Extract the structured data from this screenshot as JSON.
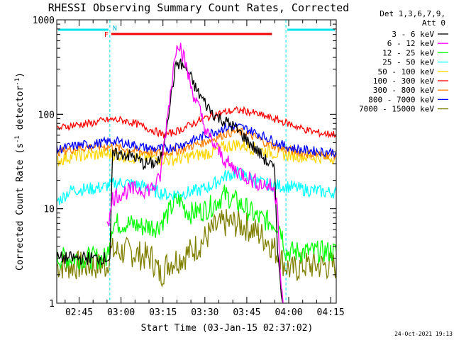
{
  "chart_data": {
    "type": "line",
    "title": "RHESSI Observing Summary Count Rates, Corrected",
    "xlabel": "Start Time (03-Jan-15 02:37:02)",
    "ylabel_main": "Corrected Count Rate (s",
    "ylabel_sup1": "-1",
    "ylabel_mid": " detector",
    "ylabel_sup2": "-1",
    "ylabel_end": ")",
    "yscale": "log",
    "ylim": [
      1,
      1000
    ],
    "xlim_minutes": [
      0,
      100
    ],
    "x_tick_labels": [
      "02:45",
      "03:00",
      "03:15",
      "03:30",
      "03:45",
      "04:00",
      "04:15"
    ],
    "x_tick_minutes": [
      8,
      23,
      38,
      53,
      68,
      83,
      98
    ],
    "y_tick_labels": [
      "1",
      "10",
      "100",
      "1000"
    ],
    "y_tick_values": [
      1,
      10,
      100,
      1000
    ],
    "legend_header": [
      "Det 1,3,6,7,9,",
      "Att 0"
    ],
    "legend_placement": "right",
    "footer_date": "24-Oct-2021 19:13",
    "night_intervals_minutes": [
      [
        0,
        19
      ],
      [
        82,
        100
      ]
    ],
    "night_flag": "N",
    "flare_interval_minutes": [
      19.5,
      77
    ],
    "flare_flag": "F",
    "series": [
      {
        "name": "3 - 6 keV",
        "color": "#000000",
        "t": [
          0,
          19,
          20,
          24,
          28,
          31,
          34,
          37,
          38,
          39,
          41,
          42,
          43,
          45,
          47,
          50,
          54,
          57,
          60,
          63,
          66,
          69,
          72,
          75,
          77,
          78,
          79,
          80,
          81
        ],
        "v": [
          3,
          3,
          37,
          38,
          35,
          30,
          30,
          32,
          40,
          70,
          160,
          260,
          350,
          330,
          280,
          180,
          120,
          95,
          85,
          75,
          62,
          50,
          40,
          32,
          28,
          24,
          4,
          1.5,
          1
        ]
      },
      {
        "name": "6 - 12 keV",
        "color": "#ff00ff",
        "t": [
          18,
          19,
          20,
          24,
          28,
          32,
          35,
          36,
          37,
          38,
          40,
          42,
          43,
          44,
          46,
          48,
          51,
          54,
          58,
          62,
          66,
          70,
          74,
          77,
          79,
          80,
          81
        ],
        "v": [
          8,
          8,
          13,
          15,
          16,
          16,
          17,
          19,
          22,
          38,
          120,
          350,
          620,
          550,
          350,
          200,
          110,
          60,
          40,
          28,
          24,
          20,
          18,
          17,
          12,
          2,
          1
        ]
      },
      {
        "name": "12 - 25 keV",
        "color": "#00ff00",
        "t": [
          0,
          18,
          19,
          20,
          25,
          30,
          36,
          40,
          42,
          44,
          46,
          48,
          52,
          56,
          58,
          60,
          64,
          68,
          72,
          75,
          78,
          80,
          82,
          100
        ],
        "v": [
          3,
          3,
          5,
          7,
          7,
          6.5,
          6.5,
          9,
          11.5,
          12.5,
          10,
          9,
          9.5,
          11,
          12.5,
          14,
          12,
          10,
          8,
          7.5,
          7,
          6.5,
          3.5,
          3.5
        ]
      },
      {
        "name": "25 - 50 keV",
        "color": "#00ffff",
        "t": [
          0,
          2,
          4,
          6,
          10,
          14,
          17,
          20,
          24,
          28,
          32,
          36,
          40,
          44,
          48,
          52,
          56,
          60,
          64,
          68,
          72,
          76,
          80,
          84,
          88,
          92,
          96,
          100
        ],
        "v": [
          12,
          13,
          15,
          16,
          16,
          16.5,
          17,
          18.5,
          19,
          18,
          17,
          15,
          14,
          14.5,
          15,
          16,
          18,
          22,
          24,
          22,
          19,
          18,
          17.5,
          17,
          16,
          15.5,
          15,
          15
        ]
      },
      {
        "name": "50 - 100 keV",
        "color": "#ffd700",
        "t": [
          0,
          4,
          8,
          12,
          16,
          20,
          24,
          28,
          32,
          36,
          40,
          44,
          48,
          52,
          56,
          60,
          64,
          68,
          72,
          76,
          80,
          84,
          88,
          92,
          96,
          100
        ],
        "v": [
          32,
          35,
          37,
          37,
          38,
          38,
          36,
          35,
          35,
          34,
          33,
          34,
          36,
          38,
          40,
          45,
          48,
          46,
          42,
          40,
          38,
          37,
          36,
          35,
          35,
          35
        ]
      },
      {
        "name": "100 - 300 keV",
        "color": "#ff0000",
        "t": [
          0,
          4,
          8,
          12,
          16,
          20,
          24,
          28,
          32,
          36,
          38,
          40,
          44,
          48,
          52,
          56,
          60,
          64,
          68,
          72,
          76,
          80,
          84,
          88,
          92,
          96,
          100
        ],
        "v": [
          70,
          75,
          78,
          80,
          85,
          88,
          86,
          80,
          72,
          65,
          60,
          62,
          68,
          78,
          88,
          98,
          105,
          110,
          108,
          100,
          92,
          85,
          78,
          70,
          65,
          62,
          62
        ]
      },
      {
        "name": "300 - 800 keV",
        "color": "#ff8000",
        "t": [
          0,
          4,
          8,
          12,
          16,
          20,
          24,
          28,
          32,
          36,
          40,
          44,
          48,
          52,
          56,
          60,
          64,
          68,
          72,
          76,
          80,
          84,
          88,
          92,
          96,
          100
        ],
        "v": [
          40,
          42,
          44,
          45,
          46,
          45,
          43,
          41,
          40,
          39,
          40,
          42,
          46,
          50,
          55,
          62,
          66,
          62,
          55,
          48,
          44,
          41,
          39,
          38,
          37,
          37
        ]
      },
      {
        "name": "800 - 7000 keV",
        "color": "#0000ff",
        "t": [
          0,
          4,
          8,
          12,
          16,
          20,
          24,
          28,
          32,
          36,
          40,
          44,
          48,
          52,
          56,
          60,
          64,
          68,
          72,
          76,
          80,
          84,
          88,
          92,
          96,
          100
        ],
        "v": [
          42,
          45,
          47,
          48,
          50,
          52,
          50,
          47,
          44,
          43,
          44,
          47,
          52,
          58,
          65,
          72,
          75,
          70,
          62,
          55,
          48,
          44,
          42,
          41,
          40,
          40
        ]
      },
      {
        "name": "7000 - 15000 keV",
        "color": "#808000",
        "t": [
          0,
          10,
          18,
          19,
          22,
          26,
          30,
          34,
          37,
          38,
          40,
          44,
          48,
          52,
          56,
          58,
          60,
          64,
          68,
          72,
          76,
          80,
          82,
          84,
          88,
          100
        ],
        "v": [
          2.5,
          2.5,
          2.5,
          3.5,
          3.5,
          3.5,
          3.2,
          3,
          2,
          2.2,
          2.7,
          3,
          3.5,
          4.5,
          6,
          6.5,
          7,
          7,
          6.5,
          5.5,
          4.5,
          3,
          2.5,
          2.2,
          2.5,
          2.5
        ]
      }
    ]
  }
}
